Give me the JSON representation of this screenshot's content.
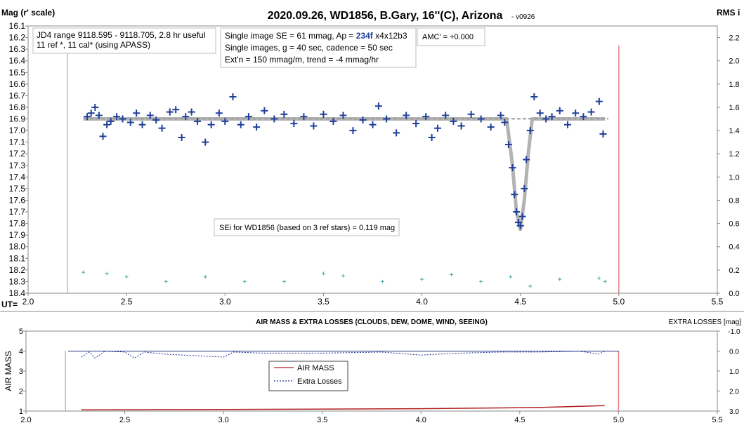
{
  "chart_data": [
    {
      "type": "scatter",
      "title": "2020.09.26, WD1856, B.Gary, 16''(C), Arizona",
      "subtitle": "- v0926",
      "y_label": "Mag (r' scale)",
      "y2_label": "RMS i",
      "x_prefix": "UT=",
      "xlim": [
        2.0,
        5.5
      ],
      "xticks": [
        {
          "value": 2.0,
          "label": "2.0"
        },
        2.5,
        {
          "value": 3.0,
          "label": "3.0"
        },
        3.5,
        {
          "value": 4.0,
          "label": "4.0"
        },
        4.5,
        {
          "value": 5.0,
          "label": "5.0"
        },
        5.5
      ],
      "ylim": [
        16.1,
        18.4
      ],
      "y_inverted": true,
      "yticks": [
        16.1,
        16.2,
        16.3,
        16.4,
        16.5,
        16.6,
        16.7,
        16.8,
        16.9,
        {
          "value": 17.0,
          "label": "17.0"
        },
        17.1,
        17.2,
        17.3,
        17.4,
        17.5,
        17.6,
        17.7,
        17.8,
        17.9,
        {
          "value": 18.0,
          "label": "18.0"
        },
        18.1,
        18.2,
        18.3,
        18.4
      ],
      "y2lim": [
        0,
        2.3
      ],
      "y2ticks": [
        {
          "value": 0,
          "label": "0.0"
        },
        0.2,
        0.4,
        0.6,
        0.8,
        {
          "value": 1.0,
          "label": "1.0"
        },
        1.2,
        1.4,
        1.6,
        1.8,
        {
          "value": 2.0,
          "label": "2.0"
        },
        2.2
      ],
      "reference_line": 16.9,
      "vertical_lines": [
        {
          "x": 2.2,
          "color": "#a8d08d"
        },
        {
          "x": 5.0,
          "color": "#e88080"
        }
      ],
      "series": [
        {
          "style": "line",
          "color": "#a0a0a0",
          "x": [
            2.28,
            4.43,
            4.46,
            4.48,
            4.5,
            4.52,
            4.54,
            4.56,
            4.93
          ],
          "values": [
            16.9,
            16.9,
            17.3,
            17.7,
            17.85,
            17.6,
            17.2,
            16.9,
            16.9
          ]
        },
        {
          "style": "plus",
          "color": "#1f3f99",
          "x": [
            2.3,
            2.32,
            2.34,
            2.36,
            2.38,
            2.4,
            2.42,
            2.45,
            2.48,
            2.52,
            2.55,
            2.58,
            2.62,
            2.65,
            2.68,
            2.72,
            2.75,
            2.78,
            2.8,
            2.83,
            2.86,
            2.9,
            2.93,
            2.97,
            3.0,
            3.04,
            3.08,
            3.12,
            3.16,
            3.2,
            3.25,
            3.3,
            3.35,
            3.4,
            3.45,
            3.5,
            3.55,
            3.6,
            3.65,
            3.7,
            3.75,
            3.78,
            3.82,
            3.87,
            3.92,
            3.97,
            4.02,
            4.05,
            4.08,
            4.12,
            4.16,
            4.2,
            4.25,
            4.3,
            4.35,
            4.4,
            4.42,
            4.44,
            4.46,
            4.47,
            4.48,
            4.49,
            4.5,
            4.51,
            4.52,
            4.53,
            4.55,
            4.57,
            4.6,
            4.63,
            4.66,
            4.7,
            4.74,
            4.78,
            4.82,
            4.86,
            4.9,
            4.92
          ],
          "values": [
            16.88,
            16.85,
            16.8,
            16.87,
            17.05,
            16.95,
            16.92,
            16.88,
            16.9,
            16.93,
            16.85,
            16.95,
            16.87,
            16.91,
            16.98,
            16.84,
            16.82,
            17.06,
            16.88,
            16.84,
            16.92,
            17.1,
            16.95,
            16.85,
            16.92,
            16.71,
            16.95,
            16.88,
            16.97,
            16.83,
            16.9,
            16.86,
            16.94,
            16.88,
            16.96,
            16.86,
            16.92,
            16.87,
            17.0,
            16.91,
            16.95,
            16.79,
            16.9,
            17.02,
            16.87,
            16.94,
            16.88,
            17.06,
            16.98,
            16.87,
            16.92,
            16.96,
            16.86,
            16.9,
            16.97,
            16.87,
            16.93,
            17.12,
            17.32,
            17.55,
            17.7,
            17.79,
            17.82,
            17.74,
            17.5,
            17.25,
            17.0,
            16.71,
            16.85,
            16.9,
            16.88,
            16.83,
            16.95,
            16.85,
            16.88,
            16.84,
            16.75,
            17.03
          ]
        },
        {
          "style": "small-plus",
          "color": "#4aa5a5",
          "axis": "y2",
          "x": [
            2.28,
            2.4,
            2.5,
            2.7,
            2.9,
            3.1,
            3.3,
            3.5,
            3.6,
            3.8,
            4.0,
            4.15,
            4.3,
            4.45,
            4.55,
            4.7,
            4.9,
            4.93
          ],
          "values": [
            0.18,
            0.17,
            0.14,
            0.1,
            0.14,
            0.1,
            0.1,
            0.17,
            0.15,
            0.1,
            0.12,
            0.16,
            0.1,
            0.14,
            0.06,
            0.12,
            0.13,
            0.1
          ]
        }
      ],
      "annotations": [
        {
          "lines": [
            "JD4 range 9118.595 - 9118.705, 2.8 hr useful",
            " 11 ref *, 11 cal* (using APASS)"
          ]
        },
        {
          "lines": [
            [
              "Single image SE = 61 mmag, Ap = ",
              "234f",
              " x4x12b3"
            ],
            "Single images, g = 40 sec, cadence = 50 sec",
            "Ext'n = 150 mmag/m, trend = -4 mmag/hr"
          ]
        },
        {
          "lines": [
            "AMC' = +0.000"
          ]
        },
        {
          "lines": [
            "SEi for WD1856 (based on 3 ref stars) = 0.119 mag"
          ]
        }
      ]
    },
    {
      "type": "line",
      "title": "AIR MASS & EXTRA LOSSES (CLOUDS, DEW, DOME, WIND, SEEING)",
      "y_label": "AIR MASS",
      "y2_label": "EXTRA LOSSES [mag]",
      "xlim": [
        2.0,
        5.5
      ],
      "xticks": [
        {
          "value": 2.0,
          "label": "2.0"
        },
        2.5,
        {
          "value": 3.0,
          "label": "3.0"
        },
        3.5,
        {
          "value": 4.0,
          "label": "4.0"
        },
        4.5,
        {
          "value": 5.0,
          "label": "5.0"
        },
        5.5
      ],
      "ylim": [
        1,
        5
      ],
      "yticks": [
        1,
        2,
        3,
        4,
        5
      ],
      "y2lim": [
        -1,
        3
      ],
      "y2_inverted": true,
      "y2ticks": [
        {
          "value": -1,
          "label": "-1.0"
        },
        {
          "value": 0,
          "label": "0.0"
        },
        {
          "value": 1,
          "label": "1.0"
        },
        {
          "value": 2,
          "label": "2.0"
        },
        {
          "value": 3,
          "label": "3.0"
        }
      ],
      "reference_line": 4,
      "vertical_lines": [
        {
          "x": 2.2,
          "color": "#a8d08d"
        },
        {
          "x": 5.0,
          "color": "#e88080"
        }
      ],
      "series": [
        {
          "name": "AIR MASS",
          "style": "line",
          "color": "#b02020",
          "x": [
            2.28,
            3.0,
            4.0,
            4.6,
            4.93
          ],
          "values": [
            1.06,
            1.08,
            1.12,
            1.18,
            1.27
          ]
        },
        {
          "name": "Extra Losses",
          "style": "dotted-line",
          "color": "#1f2fa0",
          "axis": "y2",
          "x": [
            2.28,
            2.32,
            2.35,
            2.4,
            2.5,
            2.55,
            2.6,
            2.7,
            2.9,
            3.0,
            3.05,
            3.2,
            3.5,
            3.8,
            4.0,
            4.2,
            4.4,
            4.6,
            4.8,
            4.9,
            4.93
          ],
          "values": [
            0.3,
            0.05,
            0.35,
            0.0,
            0.05,
            0.35,
            0.05,
            0.15,
            0.25,
            0.3,
            0.05,
            0.1,
            0.1,
            0.05,
            0.2,
            0.1,
            0.05,
            0.05,
            0.0,
            0.15,
            0.0
          ]
        }
      ]
    }
  ]
}
